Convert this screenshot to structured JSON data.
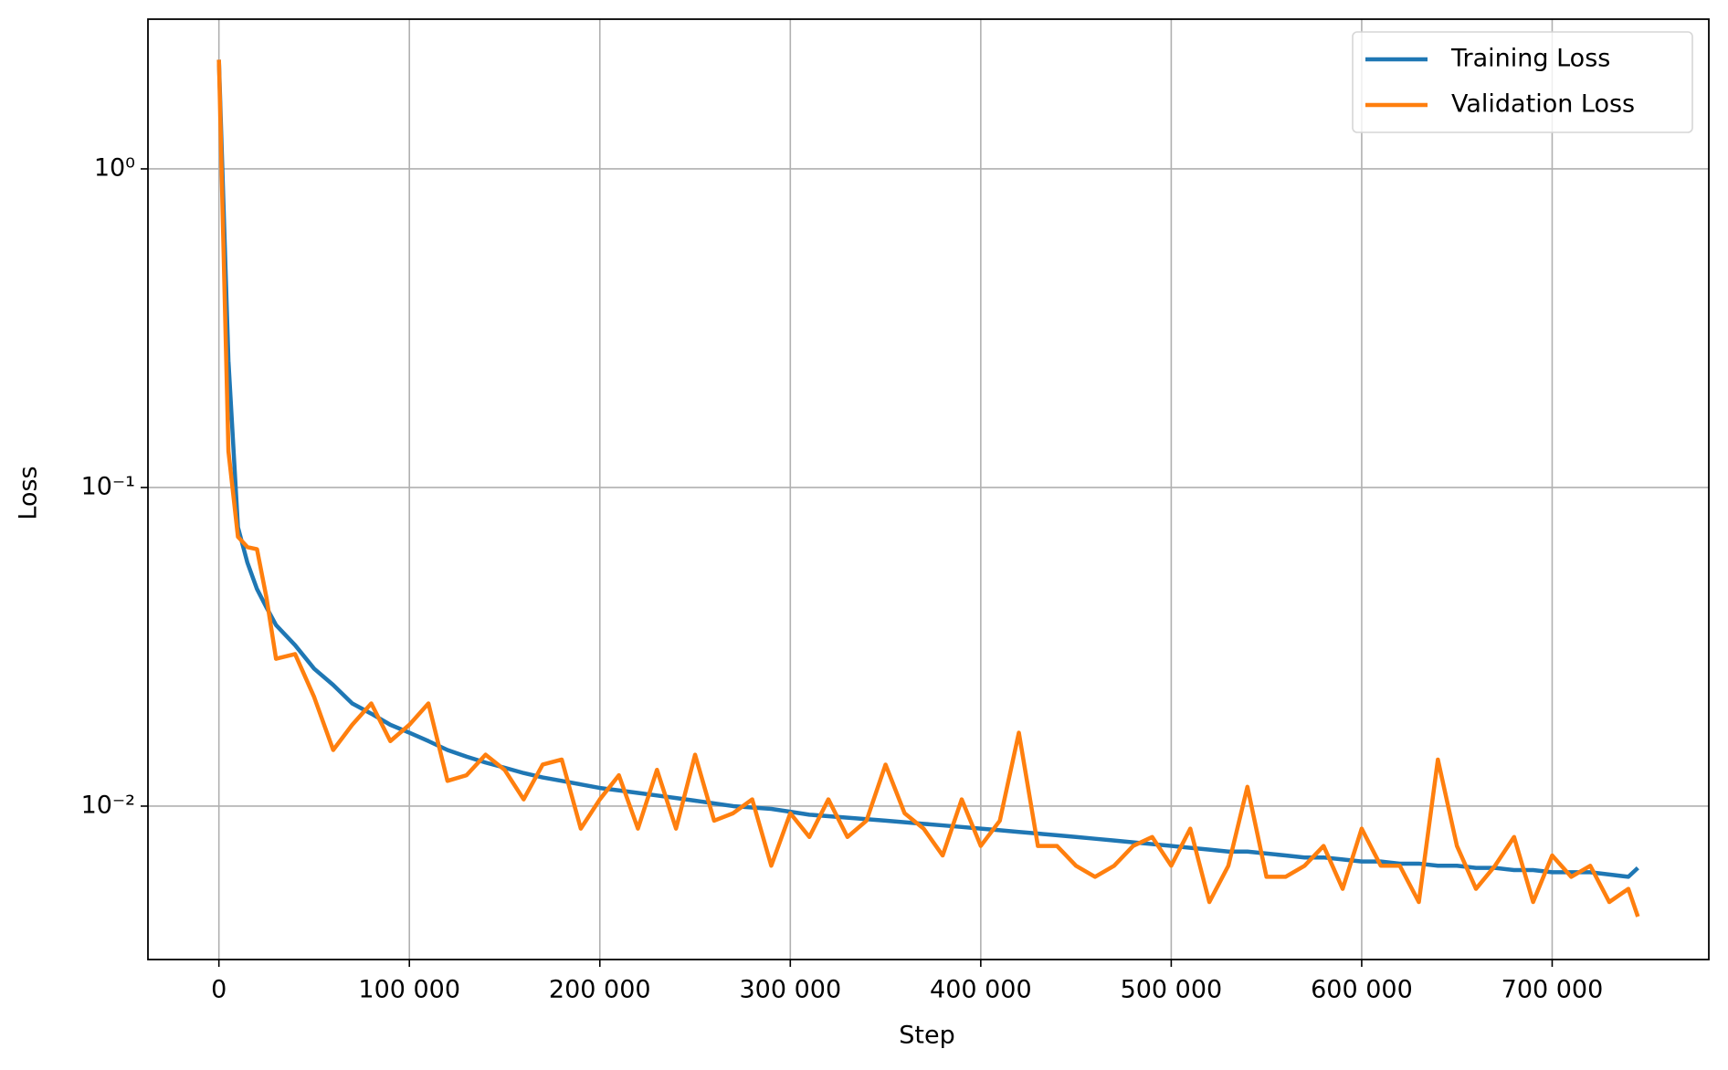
{
  "chart_data": {
    "type": "line",
    "xlabel": "Step",
    "ylabel": "Loss",
    "x": [
      0,
      5000,
      10000,
      15000,
      20000,
      25000,
      30000,
      40000,
      50000,
      60000,
      70000,
      80000,
      90000,
      100000,
      110000,
      120000,
      130000,
      140000,
      150000,
      160000,
      170000,
      180000,
      190000,
      200000,
      210000,
      220000,
      230000,
      240000,
      250000,
      260000,
      270000,
      280000,
      290000,
      300000,
      310000,
      320000,
      330000,
      340000,
      350000,
      360000,
      370000,
      380000,
      390000,
      400000,
      410000,
      420000,
      430000,
      440000,
      450000,
      460000,
      470000,
      480000,
      490000,
      500000,
      510000,
      520000,
      530000,
      540000,
      550000,
      560000,
      570000,
      580000,
      590000,
      600000,
      610000,
      620000,
      630000,
      640000,
      650000,
      660000,
      670000,
      680000,
      690000,
      700000,
      710000,
      720000,
      730000,
      740000,
      745000
    ],
    "series": [
      {
        "name": "Training Loss",
        "color": "#1f77b4",
        "values": [
          2.2,
          0.25,
          0.075,
          0.058,
          0.048,
          0.042,
          0.037,
          0.032,
          0.027,
          0.024,
          0.021,
          0.0195,
          0.018,
          0.017,
          0.016,
          0.015,
          0.0143,
          0.0137,
          0.0132,
          0.0127,
          0.0123,
          0.012,
          0.0117,
          0.0114,
          0.0112,
          0.011,
          0.0108,
          0.0106,
          0.0104,
          0.0102,
          0.01,
          0.0099,
          0.0098,
          0.0096,
          0.0094,
          0.0093,
          0.0092,
          0.0091,
          0.009,
          0.0089,
          0.0088,
          0.0087,
          0.0086,
          0.0085,
          0.0084,
          0.0083,
          0.0082,
          0.0081,
          0.008,
          0.0079,
          0.0078,
          0.0077,
          0.0076,
          0.0075,
          0.0074,
          0.0073,
          0.0072,
          0.0072,
          0.0071,
          0.007,
          0.0069,
          0.0069,
          0.0068,
          0.0067,
          0.0067,
          0.0066,
          0.0066,
          0.0065,
          0.0065,
          0.0064,
          0.0064,
          0.0063,
          0.0063,
          0.0062,
          0.0062,
          0.0062,
          0.0061,
          0.006,
          0.0064
        ]
      },
      {
        "name": "Validation Loss",
        "color": "#ff7f0e",
        "values": [
          2.2,
          0.13,
          0.07,
          0.065,
          0.064,
          0.045,
          0.029,
          0.03,
          0.022,
          0.015,
          0.018,
          0.021,
          0.016,
          0.018,
          0.021,
          0.012,
          0.0125,
          0.0145,
          0.013,
          0.0105,
          0.0135,
          0.014,
          0.0085,
          0.0105,
          0.0125,
          0.0085,
          0.013,
          0.0085,
          0.0145,
          0.009,
          0.0095,
          0.0105,
          0.0065,
          0.0095,
          0.008,
          0.0105,
          0.008,
          0.009,
          0.0135,
          0.0095,
          0.0085,
          0.007,
          0.0105,
          0.0075,
          0.009,
          0.017,
          0.0075,
          0.0075,
          0.0065,
          0.006,
          0.0065,
          0.0075,
          0.008,
          0.0065,
          0.0085,
          0.005,
          0.0065,
          0.0115,
          0.006,
          0.006,
          0.0065,
          0.0075,
          0.0055,
          0.0085,
          0.0065,
          0.0065,
          0.005,
          0.014,
          0.0075,
          0.0055,
          0.0065,
          0.008,
          0.005,
          0.007,
          0.006,
          0.0065,
          0.005,
          0.0055,
          0.0045
        ]
      }
    ],
    "xlim": [
      -37250,
      782250
    ],
    "xticks": [
      0,
      {
        "value": 100000,
        "label": "100 000"
      },
      {
        "value": 200000,
        "label": "200 000"
      },
      {
        "value": 300000,
        "label": "300 000"
      },
      {
        "value": 400000,
        "label": "400 000"
      },
      {
        "value": 500000,
        "label": "500 000"
      },
      {
        "value": 600000,
        "label": "600 000"
      },
      {
        "value": 700000,
        "label": "700 000"
      }
    ],
    "ylim": [
      0.0033,
      2.95
    ],
    "yticks": [
      {
        "value": 1,
        "label": "10⁰"
      },
      {
        "value": 0.1,
        "label": "10⁻¹"
      },
      {
        "value": 0.01,
        "label": "10⁻²"
      }
    ],
    "yscale": "log",
    "grid": true,
    "legend": "upper right"
  }
}
